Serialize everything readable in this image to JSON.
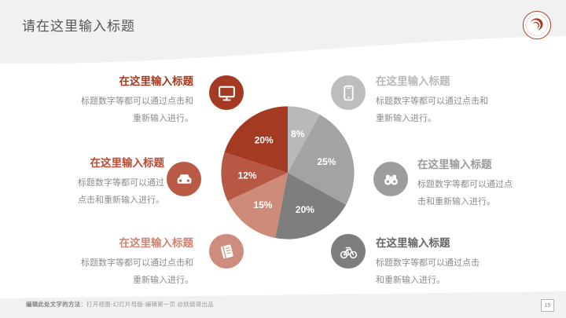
{
  "slide": {
    "title": "请在这里输入标题",
    "page_number": "15",
    "footer": {
      "bold": "编辑此处文字的方法",
      "rest": "：打开视图-幻灯片母版-编辑第一页 @妖娆哥出品"
    },
    "colors": {
      "band_gray": "#F1F1F1",
      "accent_red": "#A43A22"
    }
  },
  "callouts": [
    {
      "title": "在这里输入标题",
      "body_lines": [
        "标题数字等都可以通过点击和",
        "重新输入进行。"
      ],
      "accent": "#A43A22",
      "icon_bg": "#A43A22",
      "icon": "monitor-icon"
    },
    {
      "title": "在这里输入标题",
      "body_lines": [
        "标题数字等都可以通过",
        "点击和重新输入进行。"
      ],
      "accent": "#BC4A2F",
      "icon_bg": "#B85A45",
      "icon": "car-icon"
    },
    {
      "title": "在这里输入标题",
      "body_lines": [
        "标题数字等都可以通过点击和",
        "重新输入进行。"
      ],
      "accent": "#CD8472",
      "icon_bg": "#CF8E7D",
      "icon": "book-icon"
    },
    {
      "title": "在这里输入标题",
      "body_lines": [
        "标题数字等都可以通过点击和",
        "重新输入进行。"
      ],
      "accent": "#B9B9B9",
      "icon_bg": "#BDBDBD",
      "icon": "smartphone-icon"
    },
    {
      "title": "在这里输入标题",
      "body_lines": [
        "标题数字等都可以通过点",
        "击和重新输入进行。"
      ],
      "accent": "#9B9B9B",
      "icon_bg": "#9D9D9D",
      "icon": "binoculars-icon"
    },
    {
      "title": "在这里输入标题",
      "body_lines": [
        "标题数字等都可以通过点击",
        "和重新输入进行。"
      ],
      "accent": "#666666",
      "icon_bg": "#7D7D7D",
      "icon": "bicycle-icon"
    }
  ],
  "chart_data": {
    "type": "pie",
    "labels": [
      "8%",
      "25%",
      "20%",
      "15%",
      "12%",
      "20%"
    ],
    "values": [
      8,
      25,
      20,
      15,
      12,
      20
    ],
    "colors": [
      "#B9B9B9",
      "#A3A3A3",
      "#7E7E7E",
      "#CE8B79",
      "#B65844",
      "#A43A22"
    ],
    "start_angle_deg": 0,
    "direction": "clockwise",
    "label_color": "#FFFFFF",
    "legend": "none",
    "title": ""
  }
}
